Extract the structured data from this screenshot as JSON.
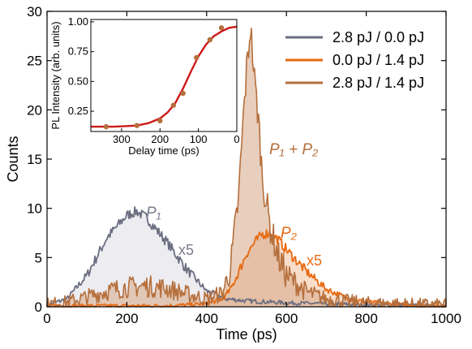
{
  "chart_data": [
    {
      "type": "line",
      "xlabel": "Time (ps)",
      "ylabel": "Counts",
      "xlim": [
        0,
        1000
      ],
      "ylim": [
        0,
        30
      ],
      "xticks": [
        0,
        200,
        400,
        600,
        800,
        1000
      ],
      "yticks": [
        0,
        5,
        10,
        15,
        20,
        25,
        30
      ],
      "legend_position": "top-right",
      "series": [
        {
          "name": "2.8 pJ / 0.0 pJ",
          "color": "#6b6e80",
          "fill": "#e7e7ec",
          "x": [
            0,
            50,
            100,
            150,
            200,
            225,
            250,
            300,
            350,
            400,
            450,
            500,
            550,
            600,
            700,
            800,
            1000
          ],
          "y": [
            0.2,
            0.8,
            3.2,
            7.0,
            9.3,
            9.7,
            9.0,
            6.6,
            3.8,
            1.6,
            0.8,
            0.6,
            0.5,
            0.4,
            0.3,
            0.2,
            0.1
          ]
        },
        {
          "name": "0.0 pJ / 1.4 pJ",
          "color": "#e86a12",
          "fill": "#f3c7a6",
          "x": [
            0,
            100,
            200,
            300,
            400,
            440,
            460,
            480,
            500,
            520,
            540,
            560,
            580,
            600,
            650,
            700,
            750,
            800,
            900,
            1000
          ],
          "y": [
            0.1,
            0.1,
            0.1,
            0.1,
            0.3,
            0.8,
            1.8,
            3.5,
            5.4,
            6.5,
            7.4,
            7.5,
            6.8,
            5.8,
            3.6,
            1.8,
            0.9,
            0.5,
            0.2,
            0.1
          ]
        },
        {
          "name": "2.8 pJ / 1.4 pJ",
          "color": "#b56f3c",
          "fill": "#d8ad8f",
          "x": [
            0,
            50,
            100,
            150,
            200,
            250,
            300,
            350,
            400,
            440,
            460,
            480,
            490,
            500,
            510,
            520,
            530,
            540,
            560,
            580,
            600,
            650,
            700,
            800,
            1000
          ],
          "y": [
            0.3,
            0.5,
            1.0,
            1.6,
            2.0,
            2.1,
            1.9,
            1.3,
            0.8,
            1.4,
            4.0,
            11.0,
            18.0,
            24.0,
            28.5,
            23.0,
            19.0,
            13.0,
            8.0,
            5.0,
            3.2,
            1.5,
            0.8,
            0.4,
            0.2
          ]
        }
      ],
      "annotations": [
        {
          "text": "P₁",
          "color": "#7a7c8e"
        },
        {
          "text": "x5",
          "color": "#7a7c8e"
        },
        {
          "text": "P₁ + P₂",
          "color": "#b56f3c"
        },
        {
          "text": "P₂",
          "color": "#e86a12"
        },
        {
          "text": "x5",
          "color": "#e86a12"
        }
      ]
    },
    {
      "type": "scatter",
      "inset": true,
      "xlabel": "Delay time (ps)",
      "ylabel": "PL Intensity (arb. units)",
      "xlim": [
        380,
        0
      ],
      "ylim": [
        0.08,
        1.02
      ],
      "xticks": [
        300,
        200,
        100,
        0
      ],
      "yticks": [
        0.25,
        0.5,
        0.75,
        1.0
      ],
      "ytick_labels": [
        "0.25",
        "0.50",
        "0.75",
        "1.00"
      ],
      "points": {
        "color": "#b56f3c",
        "x": [
          340,
          260,
          200,
          165,
          140,
          105,
          70,
          40
        ],
        "y": [
          0.12,
          0.13,
          0.17,
          0.3,
          0.4,
          0.7,
          0.85,
          0.95
        ]
      },
      "fit": {
        "color": "#cc1a1a",
        "x": [
          380,
          350,
          320,
          290,
          260,
          230,
          200,
          180,
          160,
          140,
          120,
          100,
          80,
          60,
          40,
          20,
          0
        ],
        "y": [
          0.12,
          0.12,
          0.12,
          0.125,
          0.13,
          0.15,
          0.19,
          0.24,
          0.32,
          0.44,
          0.58,
          0.71,
          0.81,
          0.88,
          0.92,
          0.95,
          0.96
        ]
      }
    }
  ]
}
